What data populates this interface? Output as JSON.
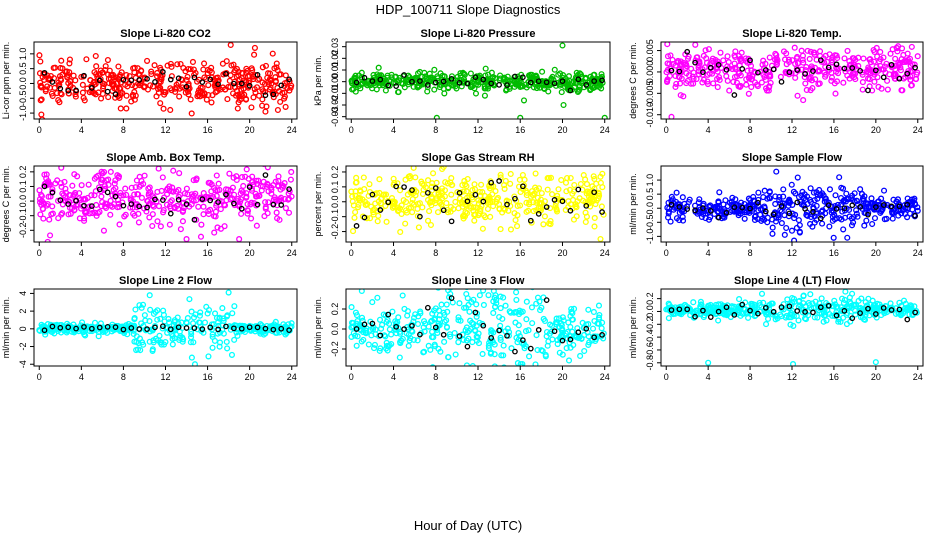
{
  "figure": {
    "title": "HDP_100711  Slope Diagnostics",
    "xlabel": "Hour of Day (UTC)"
  },
  "chart_data": [
    {
      "type": "scatter",
      "title": "Slope Li-820 CO2",
      "ylabel": "Li-cor ppm per min.",
      "color": "#ff0000",
      "overlay_color": "#000000",
      "xlim": [
        -0.5,
        24.5
      ],
      "ylim": [
        -1.2,
        1.4
      ],
      "xticks": [
        0,
        4,
        8,
        12,
        16,
        20,
        24
      ],
      "yticks": [
        -1.0,
        -0.5,
        0.0,
        0.5,
        1.0
      ],
      "ytick_labels": [
        "-1.0",
        "-0.5",
        "0.0",
        "0.5",
        "1.0"
      ],
      "n_points": 420,
      "center": 0.0,
      "spread": 0.35,
      "outliers": [
        [
          18.2,
          1.3
        ],
        [
          0.2,
          -1.05
        ],
        [
          21.5,
          -0.95
        ],
        [
          20.5,
          1.2
        ]
      ],
      "overlay_center": 0.0,
      "overlay_spread": 0.2
    },
    {
      "type": "scatter",
      "title": "Slope Li-820 Pressure",
      "ylabel": "kPa per min.",
      "color": "#00bb00",
      "overlay_color": "#000000",
      "xlim": [
        -0.5,
        24.5
      ],
      "ylim": [
        -0.032,
        0.034
      ],
      "xticks": [
        0,
        4,
        8,
        12,
        16,
        20,
        24
      ],
      "yticks": [
        -0.03,
        -0.02,
        -0.01,
        0.0,
        0.01,
        0.02,
        0.03
      ],
      "ytick_labels": [
        "-0.03",
        "-0.02",
        "-0.01",
        "0.00",
        "0.01",
        "0.02",
        "0.03"
      ],
      "n_points": 420,
      "center": 0.0,
      "spread": 0.004,
      "outliers": [
        [
          20.0,
          0.031
        ],
        [
          20.1,
          -0.02
        ],
        [
          24.0,
          -0.031
        ],
        [
          8.1,
          -0.031
        ],
        [
          16.0,
          -0.031
        ]
      ],
      "overlay_center": 0.001,
      "overlay_spread": 0.003
    },
    {
      "type": "scatter",
      "title": "Slope Li-820 Temp.",
      "ylabel": "degrees C per min.",
      "color": "#ff00ff",
      "overlay_color": "#000000",
      "xlim": [
        -0.5,
        24.5
      ],
      "ylim": [
        -0.011,
        0.007
      ],
      "xticks": [
        0,
        4,
        8,
        12,
        16,
        20,
        24
      ],
      "yticks": [
        -0.01,
        -0.005,
        0.0,
        0.005
      ],
      "ytick_labels": [
        "-0.010",
        "-0.005",
        "0.000",
        "0.005"
      ],
      "n_points": 420,
      "center": 0.0005,
      "spread": 0.0025,
      "outliers": [
        [
          0.5,
          -0.0105
        ],
        [
          0.1,
          0.0065
        ],
        [
          22.5,
          0.0055
        ]
      ],
      "overlay_center": 0.0,
      "overlay_spread": 0.0018
    },
    {
      "type": "scatter",
      "title": "Slope Amb. Box Temp.",
      "ylabel": "degrees C per min.",
      "color": "#ff00ff",
      "overlay_color": "#000000",
      "xlim": [
        -0.5,
        24.5
      ],
      "ylim": [
        -0.28,
        0.24
      ],
      "xticks": [
        0,
        4,
        8,
        12,
        16,
        20,
        24
      ],
      "yticks": [
        -0.2,
        -0.1,
        0.0,
        0.1,
        0.2
      ],
      "ytick_labels": [
        "-0.2",
        "-0.1",
        "0.0",
        "0.1",
        "0.2"
      ],
      "n_points": 420,
      "center": 0.02,
      "spread": 0.09,
      "outliers": [
        [
          14.0,
          -0.26
        ],
        [
          19.0,
          -0.26
        ],
        [
          6.8,
          0.2
        ]
      ],
      "overlay_center": 0.0,
      "overlay_spread": 0.06
    },
    {
      "type": "scatter",
      "title": "Slope Gas Stream RH",
      "ylabel": "percent per min.",
      "color": "#ffff00",
      "overlay_color": "#000000",
      "xlim": [
        -0.5,
        24.5
      ],
      "ylim": [
        -0.27,
        0.24
      ],
      "xticks": [
        0,
        4,
        8,
        12,
        16,
        20,
        24
      ],
      "yticks": [
        -0.2,
        -0.1,
        0.0,
        0.1,
        0.2
      ],
      "ytick_labels": [
        "-0.2",
        "-0.1",
        "0.0",
        "0.1",
        "0.2"
      ],
      "n_points": 420,
      "center": 0.01,
      "spread": 0.08,
      "outliers": [
        [
          23.6,
          -0.25
        ],
        [
          8.6,
          0.22
        ]
      ],
      "overlay_center": 0.0,
      "overlay_spread": 0.08
    },
    {
      "type": "scatter",
      "title": "Slope Sample Flow",
      "ylabel": "ml/min per min.",
      "color": "#0000ff",
      "overlay_color": "#000000",
      "xlim": [
        -0.5,
        24.5
      ],
      "ylim": [
        -1.2,
        1.5
      ],
      "xticks": [
        0,
        4,
        8,
        12,
        16,
        20,
        24
      ],
      "yticks": [
        -1.0,
        -0.5,
        0.0,
        0.5,
        1.0
      ],
      "ytick_labels": [
        "-1.0",
        "-0.5",
        "0.0",
        "0.5",
        "1.0"
      ],
      "n_points": 420,
      "center": 0.0,
      "spread": 0.22,
      "outliers": [
        [
          12.2,
          -1.15
        ],
        [
          10.5,
          1.3
        ],
        [
          16.5,
          1.1
        ]
      ],
      "overlay_center": 0.0,
      "overlay_spread": 0.12
    },
    {
      "type": "scatter",
      "title": "Slope Line 2 Flow",
      "ylabel": "ml/min per min.",
      "color": "#00ffff",
      "overlay_color": "#000000",
      "xlim": [
        -0.5,
        24.5
      ],
      "ylim": [
        -4.2,
        4.5
      ],
      "xticks": [
        0,
        4,
        8,
        12,
        16,
        20,
        24
      ],
      "yticks": [
        -4,
        -2,
        0,
        2,
        4
      ],
      "ytick_labels": [
        "-4",
        "-2",
        "0",
        "2",
        "4"
      ],
      "n_points": 420,
      "center": 0.0,
      "spread": 0.3,
      "outliers": [
        [
          14.8,
          -4.0
        ],
        [
          18.0,
          4.1
        ],
        [
          10.5,
          3.8
        ]
      ],
      "overlay_center": 0.0,
      "overlay_spread": 0.15
    },
    {
      "type": "scatter",
      "title": "Slope Line 3 Flow",
      "ylabel": "ml/min per min.",
      "color": "#00ffff",
      "overlay_color": "#000000",
      "xlim": [
        -0.5,
        24.5
      ],
      "ylim": [
        -0.37,
        0.4
      ],
      "xticks": [
        0,
        4,
        8,
        12,
        16,
        20,
        24
      ],
      "yticks": [
        -0.2,
        0.0,
        0.2
      ],
      "ytick_labels": [
        "-0.2",
        "0.0",
        "0.2"
      ],
      "n_points": 420,
      "center": 0.0,
      "spread": 0.13,
      "outliers": [
        [
          1.0,
          0.38
        ],
        [
          16.2,
          -0.35
        ],
        [
          13.5,
          0.38
        ]
      ],
      "overlay_center": 0.0,
      "overlay_spread": 0.12
    },
    {
      "type": "scatter",
      "title": "Slope Line 4 (LT) Flow",
      "ylabel": "ml/min per min.",
      "color": "#00ffff",
      "overlay_color": "#000000",
      "xlim": [
        -0.5,
        24.5
      ],
      "ylim": [
        -0.85,
        0.35
      ],
      "xticks": [
        0,
        4,
        8,
        12,
        16,
        20,
        24
      ],
      "yticks": [
        -0.8,
        -0.6,
        -0.4,
        -0.2,
        0.0,
        0.2
      ],
      "ytick_labels": [
        "-0.8",
        "-0.6",
        "-0.4",
        "-0.2",
        "0.0",
        "0.2"
      ],
      "n_points": 420,
      "center": 0.03,
      "spread": 0.06,
      "outliers": [
        [
          4.0,
          -0.8
        ],
        [
          12.1,
          -0.82
        ],
        [
          20.0,
          -0.79
        ]
      ],
      "overlay_center": 0.0,
      "overlay_spread": 0.05
    }
  ]
}
